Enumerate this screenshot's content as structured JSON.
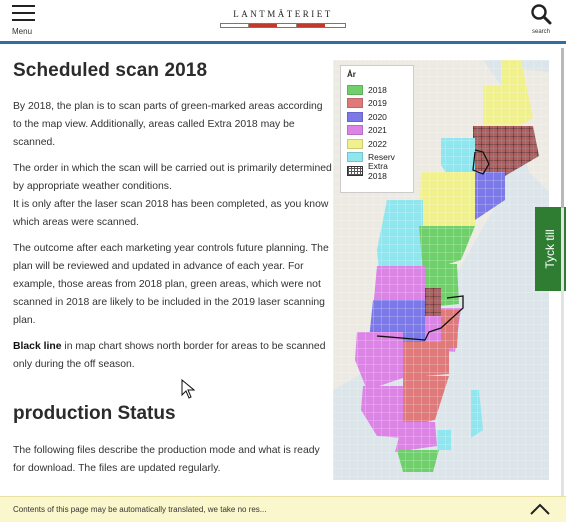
{
  "header": {
    "menu_label": "Menu",
    "logo_text": "LANTMÄTERIET",
    "search_label": "search"
  },
  "content": {
    "title": "Scheduled scan 2018",
    "paragraphs": [
      "By 2018, the plan is to scan parts of green-marked areas according to the map view. Additionally, areas called Extra 2018 may be scanned.",
      "The order in which the scan will be carried out is primarily determined by appropriate weather conditions.",
      "It is only after the laser scan 2018 has been completed, as you know which areas were scanned.",
      "The outcome after each marketing year controls future planning. The plan will be reviewed and updated in advance of each year. For example, those areas from 2018 plan, green areas, which were not scanned in 2018 are likely to be included in the 2019 laser scanning plan."
    ],
    "black_line_label": "Black line",
    "black_line_rest": " in map chart shows north border for areas to be scanned only during the off season.",
    "section_title": "production Status",
    "status_text": "The following files describe the production mode and what is ready for download. The files are updated regularly."
  },
  "map": {
    "legend_title": "År",
    "legend": [
      {
        "label": "2018",
        "color": "#6fcf6b",
        "icon": "swatch"
      },
      {
        "label": "2019",
        "color": "#e07a7a",
        "icon": "swatch"
      },
      {
        "label": "2020",
        "color": "#7b79e8",
        "icon": "swatch"
      },
      {
        "label": "2021",
        "color": "#dc83e6",
        "icon": "swatch"
      },
      {
        "label": "2022",
        "color": "#f0f08c",
        "icon": "swatch"
      },
      {
        "label": "Reserv",
        "color": "#8fe6ee",
        "icon": "swatch"
      },
      {
        "label": "Extra 2018",
        "color": "#b06060",
        "icon": "hatched-swatch"
      }
    ]
  },
  "feedback": {
    "label": "Tyck till",
    "color": "#2e7d32"
  },
  "notice": {
    "text": "Contents of this page may be automatically translated, we take no res..."
  },
  "colors": {
    "accent": "#2f6ea5",
    "notice_bg": "#fbf7cc",
    "logo_red": "#c0392b"
  }
}
